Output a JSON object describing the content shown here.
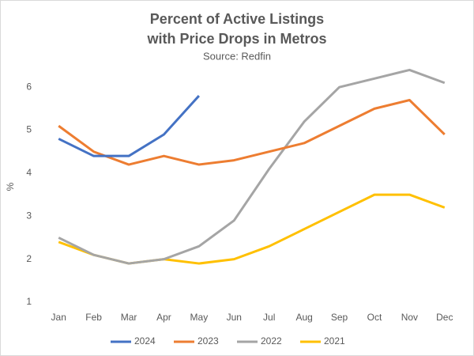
{
  "chart_data": {
    "type": "line",
    "title": [
      "Percent of Active Listings",
      "with Price Drops in Metros"
    ],
    "subtitle": "Source: Redfin",
    "y_label": "%",
    "categories": [
      "Jan",
      "Feb",
      "Mar",
      "Apr",
      "May",
      "Jun",
      "Jul",
      "Aug",
      "Sep",
      "Oct",
      "Nov",
      "Dec"
    ],
    "series": [
      {
        "name": "2024",
        "color": "#4472c4",
        "values": [
          4.8,
          4.4,
          4.4,
          4.9,
          5.8,
          null,
          null,
          null,
          null,
          null,
          null,
          null
        ]
      },
      {
        "name": "2023",
        "color": "#ed7d31",
        "values": [
          5.1,
          4.5,
          4.2,
          4.4,
          4.2,
          4.3,
          4.5,
          4.7,
          5.1,
          5.5,
          5.7,
          4.9
        ]
      },
      {
        "name": "2022",
        "color": "#a5a5a5",
        "values": [
          2.5,
          2.1,
          1.9,
          2.0,
          2.3,
          2.9,
          4.1,
          5.2,
          6.0,
          6.2,
          6.4,
          6.1
        ]
      },
      {
        "name": "2021",
        "color": "#ffc000",
        "values": [
          2.4,
          2.1,
          1.9,
          2.0,
          1.9,
          2.0,
          2.3,
          2.7,
          3.1,
          3.5,
          3.5,
          3.2
        ]
      }
    ],
    "ylim": [
      1,
      6.5
    ],
    "yticks": [
      1,
      2,
      3,
      4,
      5,
      6
    ],
    "grid": false,
    "legend": "bottom"
  }
}
